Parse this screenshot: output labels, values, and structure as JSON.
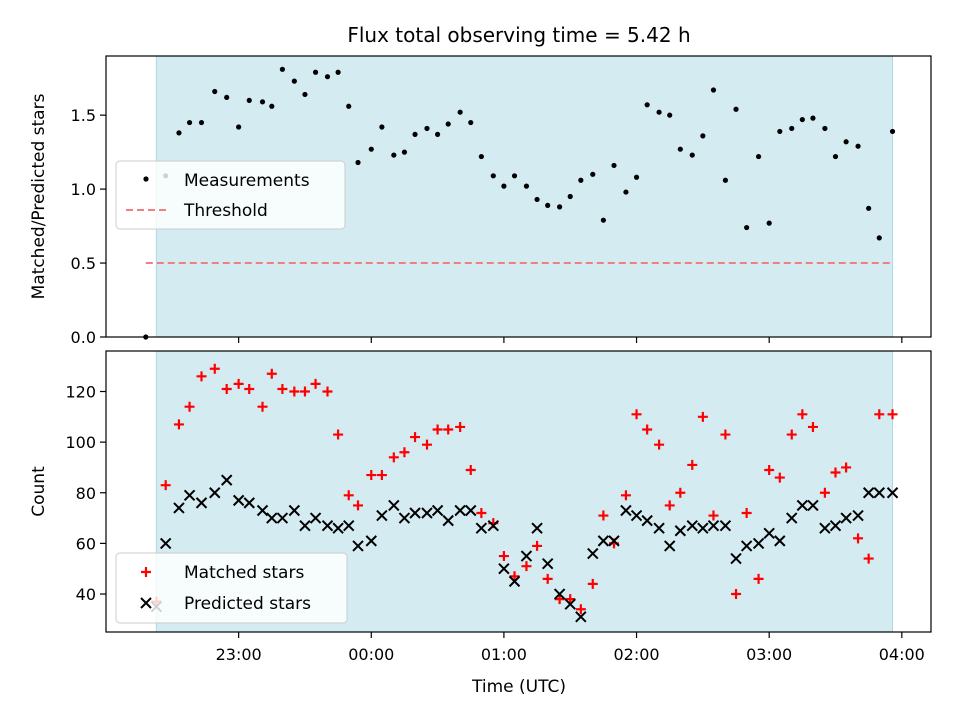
{
  "figure": {
    "title": "Flux total observing time = 5.42 h",
    "xlabel": "Time (UTC)",
    "xtick_labels": [
      "23:00",
      "00:00",
      "01:00",
      "02:00",
      "03:00",
      "04:00"
    ],
    "xtick_hours": [
      23,
      24,
      25,
      26,
      27,
      28
    ],
    "xlim_hours": [
      22.0,
      28.22
    ],
    "shaded_span_hours": [
      22.38,
      27.93
    ],
    "colors": {
      "shade": "#add8e6",
      "threshold": "#f08080",
      "matched": "#ff0000",
      "predicted": "#000000",
      "measurement": "#000000"
    }
  },
  "chart_data": [
    {
      "type": "scatter",
      "ylabel": "Matched/Predicted stars",
      "ylim": [
        0,
        1.9
      ],
      "ytick_values": [
        0.0,
        0.5,
        1.0,
        1.5
      ],
      "ytick_labels": [
        "0.0",
        "0.5",
        "1.0",
        "1.5"
      ],
      "legend_position": "center-left",
      "threshold": {
        "name": "Threshold",
        "value": 0.5,
        "x_range": [
          22.3,
          27.93
        ]
      },
      "series": [
        {
          "name": "Measurements",
          "x": [
            22.3,
            22.45,
            22.55,
            22.63,
            22.72,
            22.82,
            22.91,
            23.0,
            23.08,
            23.18,
            23.25,
            23.33,
            23.42,
            23.5,
            23.58,
            23.67,
            23.75,
            23.83,
            23.9,
            24.0,
            24.08,
            24.17,
            24.25,
            24.33,
            24.42,
            24.5,
            24.58,
            24.67,
            24.75,
            24.83,
            24.92,
            25.0,
            25.08,
            25.17,
            25.25,
            25.33,
            25.42,
            25.5,
            25.58,
            25.67,
            25.75,
            25.83,
            25.92,
            26.0,
            26.08,
            26.17,
            26.25,
            26.33,
            26.42,
            26.5,
            26.58,
            26.67,
            26.75,
            26.83,
            26.92,
            27.0,
            27.08,
            27.17,
            27.25,
            27.33,
            27.42,
            27.5,
            27.58,
            27.67,
            27.75,
            27.83,
            27.93
          ],
          "y": [
            0.0,
            1.09,
            1.38,
            1.45,
            1.45,
            1.66,
            1.62,
            1.42,
            1.6,
            1.59,
            1.56,
            1.81,
            1.73,
            1.64,
            1.79,
            1.76,
            1.79,
            1.56,
            1.18,
            1.27,
            1.42,
            1.23,
            1.25,
            1.37,
            1.41,
            1.37,
            1.44,
            1.52,
            1.45,
            1.22,
            1.09,
            1.02,
            1.09,
            1.02,
            0.93,
            0.89,
            0.88,
            0.95,
            1.06,
            1.1,
            0.79,
            1.16,
            0.98,
            1.08,
            1.57,
            1.52,
            1.5,
            1.27,
            1.23,
            1.36,
            1.67,
            1.06,
            1.54,
            0.74,
            1.22,
            0.77,
            1.39,
            1.41,
            1.47,
            1.48,
            1.41,
            1.22,
            1.32,
            1.29,
            0.87,
            0.67,
            1.39
          ]
        }
      ]
    },
    {
      "type": "scatter",
      "ylabel": "Count",
      "ylim": [
        25,
        136
      ],
      "ytick_values": [
        40,
        60,
        80,
        100,
        120
      ],
      "ytick_labels": [
        "40",
        "60",
        "80",
        "100",
        "120"
      ],
      "legend_position": "lower-left",
      "series": [
        {
          "name": "Matched stars",
          "x": [
            22.38,
            22.45,
            22.55,
            22.63,
            22.72,
            22.82,
            22.91,
            23.0,
            23.08,
            23.18,
            23.25,
            23.33,
            23.42,
            23.5,
            23.58,
            23.67,
            23.75,
            23.83,
            23.9,
            24.0,
            24.08,
            24.17,
            24.25,
            24.33,
            24.42,
            24.5,
            24.58,
            24.67,
            24.75,
            24.83,
            24.92,
            25.0,
            25.08,
            25.17,
            25.25,
            25.33,
            25.42,
            25.5,
            25.58,
            25.67,
            25.75,
            25.83,
            25.92,
            26.0,
            26.08,
            26.17,
            26.25,
            26.33,
            26.42,
            26.5,
            26.58,
            26.67,
            26.75,
            26.83,
            26.92,
            27.0,
            27.08,
            27.17,
            27.25,
            27.33,
            27.42,
            27.5,
            27.58,
            27.67,
            27.75,
            27.83,
            27.93
          ],
          "y": [
            37,
            83,
            107,
            114,
            126,
            129,
            121,
            123,
            121,
            114,
            127,
            121,
            120,
            120,
            123,
            120,
            103,
            79,
            75,
            87,
            87,
            94,
            96,
            102,
            99,
            105,
            105,
            106,
            89,
            72,
            68,
            55,
            47,
            51,
            59,
            46,
            38,
            38,
            34,
            44,
            71,
            60,
            79,
            111,
            105,
            99,
            75,
            80,
            91,
            110,
            71,
            103,
            40,
            72,
            46,
            89,
            86,
            103,
            111,
            106,
            80,
            88,
            90,
            62,
            54,
            111,
            111
          ]
        },
        {
          "name": "Predicted stars",
          "x": [
            22.38,
            22.45,
            22.55,
            22.63,
            22.72,
            22.82,
            22.91,
            23.0,
            23.08,
            23.18,
            23.25,
            23.33,
            23.42,
            23.5,
            23.58,
            23.67,
            23.75,
            23.83,
            23.9,
            24.0,
            24.08,
            24.17,
            24.25,
            24.33,
            24.42,
            24.5,
            24.58,
            24.67,
            24.75,
            24.83,
            24.92,
            25.0,
            25.08,
            25.17,
            25.25,
            25.33,
            25.42,
            25.5,
            25.58,
            25.67,
            25.75,
            25.83,
            25.92,
            26.0,
            26.08,
            26.17,
            26.25,
            26.33,
            26.42,
            26.5,
            26.58,
            26.67,
            26.75,
            26.83,
            26.92,
            27.0,
            27.08,
            27.17,
            27.25,
            27.33,
            27.42,
            27.5,
            27.58,
            27.67,
            27.75,
            27.83,
            27.93
          ],
          "y": [
            35,
            60,
            74,
            79,
            76,
            80,
            85,
            77,
            76,
            73,
            70,
            70,
            73,
            67,
            70,
            67,
            66,
            67,
            59,
            61,
            71,
            75,
            70,
            72,
            72,
            73,
            69,
            73,
            73,
            66,
            67,
            50,
            45,
            55,
            66,
            52,
            40,
            36,
            31,
            56,
            61,
            61,
            73,
            71,
            69,
            66,
            59,
            65,
            67,
            66,
            67,
            67,
            54,
            59,
            60,
            64,
            61,
            70,
            75,
            75,
            66,
            67,
            70,
            71,
            80,
            80,
            80
          ]
        }
      ]
    }
  ]
}
